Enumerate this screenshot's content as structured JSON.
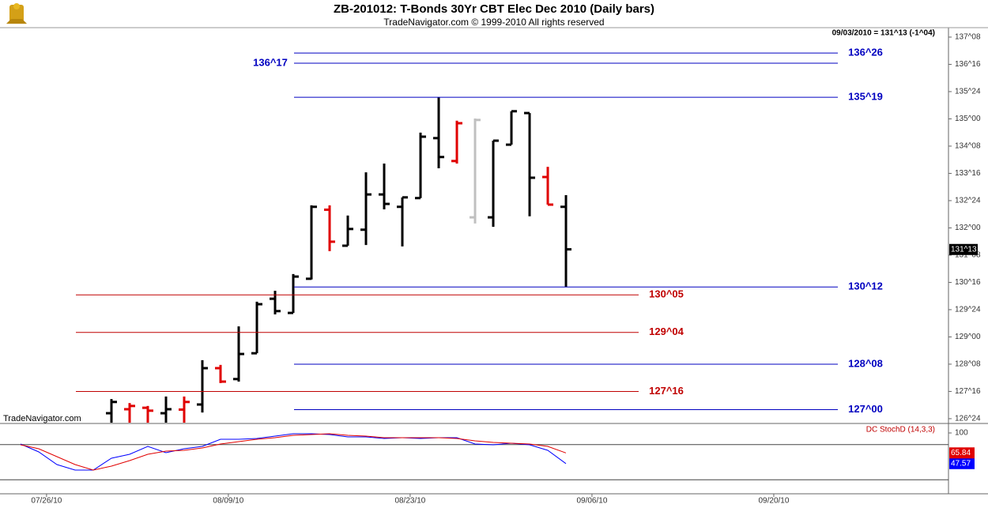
{
  "chart_data": {
    "type": "ohlc",
    "title": "ZB-201012:  T-Bonds 30Yr CBT Elec Dec 2010  (Daily bars)",
    "subtitle": "TradeNavigator.com © 1999-2010 All rights reserved",
    "header_quote": "09/03/2010 = 131^13 (-1^04)",
    "watermark": "TradeNavigator.com",
    "xlim": [
      -1.13,
      51.04
    ],
    "xticks": [
      {
        "value": 1.43,
        "label": "07/26/10"
      },
      {
        "value": 11.43,
        "label": "08/09/10"
      },
      {
        "value": 21.43,
        "label": "08/23/10"
      },
      {
        "value": 31.43,
        "label": "09/06/10"
      },
      {
        "value": 41.43,
        "label": "09/20/10"
      }
    ],
    "ylim": [
      126.64,
      137.51
    ],
    "yticks": [
      {
        "value": 137.25,
        "label": "137^08"
      },
      {
        "value": 136.5,
        "label": "136^16"
      },
      {
        "value": 135.75,
        "label": "135^24"
      },
      {
        "value": 135,
        "label": "135^00"
      },
      {
        "value": 134.25,
        "label": "134^08"
      },
      {
        "value": 133.5,
        "label": "133^16"
      },
      {
        "value": 132.75,
        "label": "132^24"
      },
      {
        "value": 132,
        "label": "132^00"
      },
      {
        "value": 131.25,
        "label": "131^08"
      },
      {
        "value": 130.5,
        "label": "130^16"
      },
      {
        "value": 129.75,
        "label": "129^24"
      },
      {
        "value": 129,
        "label": "129^00"
      },
      {
        "value": 128.25,
        "label": "128^08"
      },
      {
        "value": 127.5,
        "label": "127^16"
      },
      {
        "value": 126.75,
        "label": "126^24"
      }
    ],
    "bars": {
      "open": [
        null,
        null,
        null,
        null,
        null,
        126.9,
        127.01,
        127.05,
        126.9,
        127.0,
        127.14,
        128.14,
        127.84,
        128.55,
        130.05,
        129.66,
        130.6,
        132.5,
        131.51,
        131.95,
        132.92,
        132.58,
        132.82,
        134.47,
        133.84,
        132.29,
        132.29,
        134.29,
        135.16,
        133.4,
        132.58
      ],
      "high": [
        null,
        null,
        null,
        null,
        null,
        127.29,
        127.18,
        127.1,
        127.36,
        127.36,
        128.36,
        128.23,
        129.29,
        129.97,
        130.27,
        130.73,
        132.62,
        132.62,
        132.34,
        133.53,
        133.77,
        132.84,
        134.62,
        135.59,
        134.95,
        135.01,
        134.4,
        135.21,
        135.16,
        133.68,
        132.9
      ],
      "low": [
        null,
        null,
        null,
        null,
        null,
        126.64,
        126.64,
        126.64,
        126.64,
        126.64,
        126.92,
        127.73,
        127.77,
        128.55,
        129.62,
        129.66,
        130.58,
        131.36,
        131.51,
        131.53,
        132.51,
        131.49,
        132.82,
        133.64,
        133.77,
        132.12,
        132.03,
        134.29,
        132.32,
        132.64,
        130.38
      ],
      "close": [
        null,
        null,
        null,
        null,
        null,
        127.21,
        127.1,
        126.97,
        127.01,
        127.21,
        128.14,
        127.77,
        128.53,
        129.9,
        129.71,
        130.66,
        132.58,
        131.62,
        131.97,
        132.92,
        132.66,
        132.84,
        134.51,
        133.95,
        134.88,
        134.97,
        134.4,
        135.21,
        133.38,
        132.64,
        131.41
      ],
      "colors": [
        null,
        null,
        null,
        null,
        null,
        "#000000",
        "#e00000",
        "#e00000",
        "#000000",
        "#e00000",
        "#000000",
        "#e00000",
        "#000000",
        "#000000",
        "#000000",
        "#000000",
        "#000000",
        "#e00000",
        "#000000",
        "#000000",
        "#000000",
        "#000000",
        "#000000",
        "#000000",
        "#e00000",
        "#c0c0c0",
        "#000000",
        "#000000",
        "#000000",
        "#e00000",
        "#000000"
      ]
    },
    "last_price": {
      "value": 131.406,
      "label": "131^13"
    },
    "levels": [
      {
        "value": 136.8125,
        "label": "136^26",
        "color": "#0000c0",
        "side": "right"
      },
      {
        "value": 136.53125,
        "label": "136^17",
        "color": "#0000c0",
        "side": "left"
      },
      {
        "value": 135.59375,
        "label": "135^19",
        "color": "#0000c0",
        "side": "right"
      },
      {
        "value": 130.375,
        "label": "130^12",
        "color": "#0000c0",
        "side": "right"
      },
      {
        "value": 130.15625,
        "label": "130^05",
        "color": "#c00000",
        "side": "right"
      },
      {
        "value": 129.125,
        "label": "129^04",
        "color": "#c00000",
        "side": "right"
      },
      {
        "value": 128.25,
        "label": "128^08",
        "color": "#0000c0",
        "side": "right"
      },
      {
        "value": 127.5,
        "label": "127^16",
        "color": "#c00000",
        "side": "right"
      },
      {
        "value": 127,
        "label": "127^00",
        "color": "#0000c0",
        "side": "right"
      }
    ],
    "indicator": {
      "title": "DC StochD (14,3,3)",
      "ylim": [
        0,
        100
      ],
      "yticks": [
        100
      ],
      "levels": [
        80,
        20
      ],
      "series": [
        {
          "color": "#0000ff",
          "values": [
            81.1,
            67.6,
            45.9,
            36.5,
            36.5,
            56.7,
            63.5,
            77.0,
            66.2,
            73.0,
            77.0,
            89.2,
            89.2,
            90.5,
            94.6,
            98.6,
            98.6,
            97.3,
            93.2,
            93.2,
            90.5,
            91.9,
            90.5,
            91.9,
            91.9,
            81.1,
            79.7,
            82.4,
            79.7,
            70.3,
            47.57
          ]
        },
        {
          "color": "#e00000",
          "values": [
            79.7,
            73.0,
            59.4,
            45.9,
            36.5,
            43.2,
            52.7,
            63.5,
            68.9,
            70.3,
            74.3,
            81.1,
            85.1,
            89.2,
            91.9,
            95.9,
            97.3,
            98.6,
            95.9,
            94.6,
            91.9,
            91.9,
            91.9,
            91.9,
            90.5,
            86.5,
            83.8,
            82.4,
            81.1,
            77.0,
            65.84
          ]
        }
      ]
    }
  }
}
